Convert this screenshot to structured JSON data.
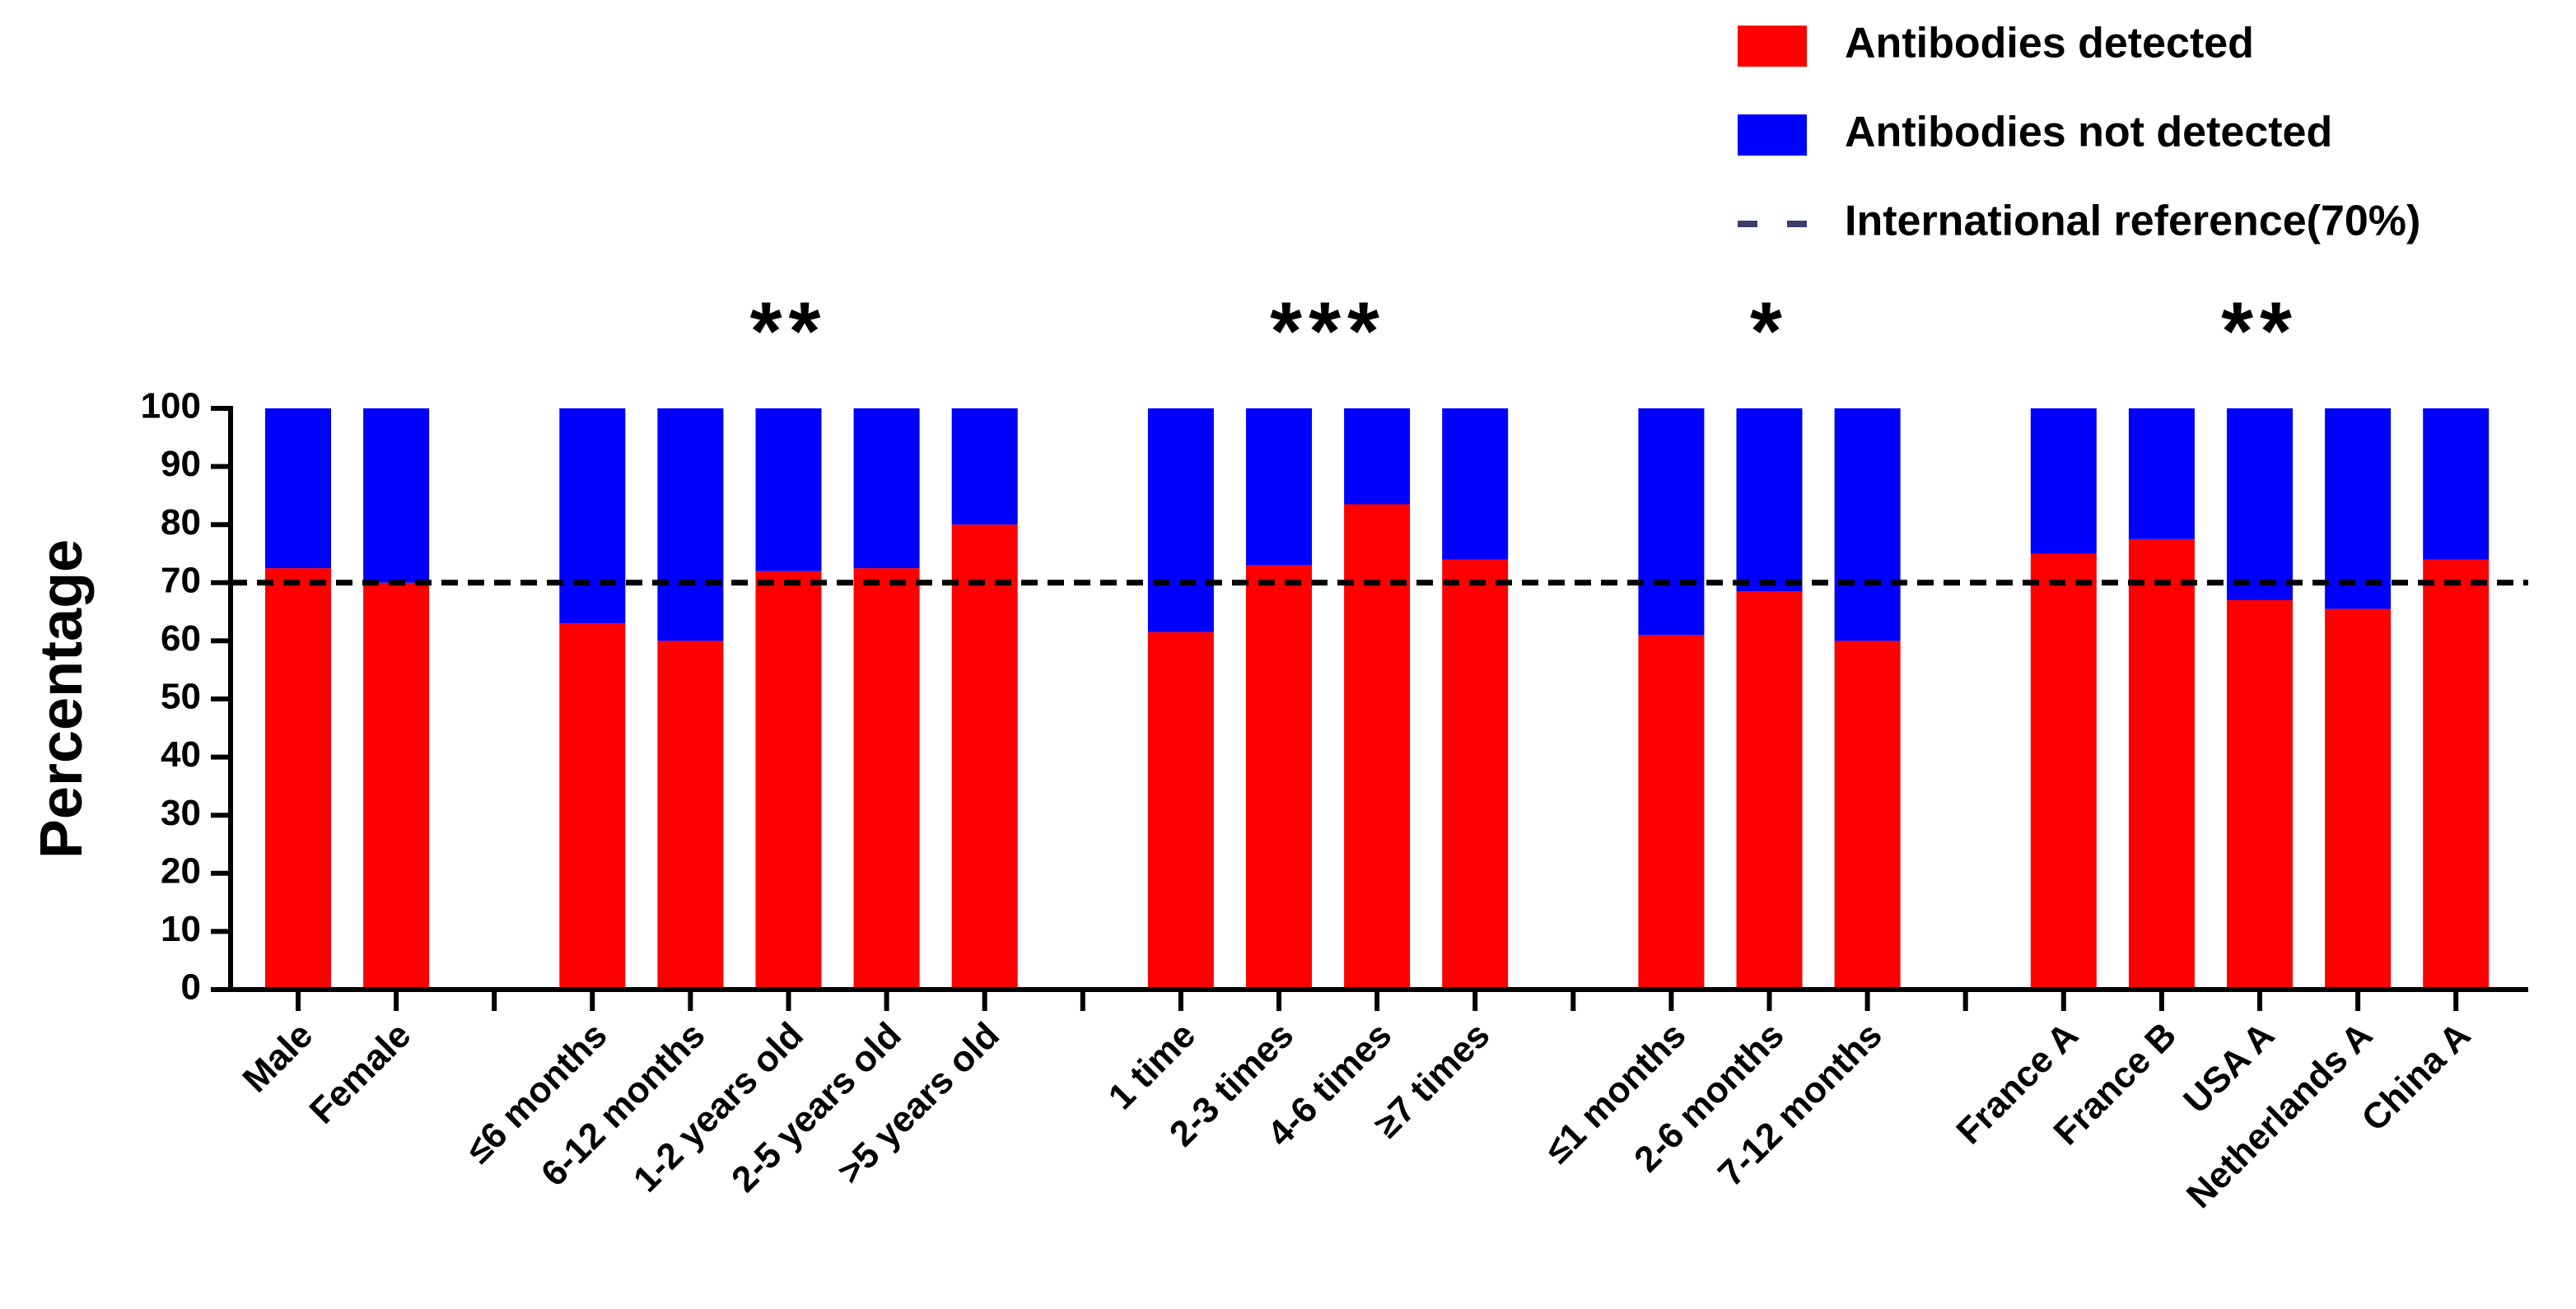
{
  "chart_data": {
    "type": "stacked_bar",
    "y_label": "Percentage",
    "categories": [
      "Male",
      "Female",
      null,
      "≤6 months",
      "6-12 months",
      "1-2 years old",
      "2-5 years old",
      ">5 years old",
      null,
      "1 time",
      "2-3 times",
      "4-6 times",
      "≥7 times",
      null,
      "≤1 months",
      "2-6 months",
      "7-12 months",
      null,
      "France A",
      "France B",
      "USA A",
      "Netherlands A",
      "China A"
    ],
    "series": [
      {
        "name": "Antibodies detected",
        "color": "#ff0000",
        "values": [
          72.5,
          70,
          null,
          63,
          60,
          72,
          72.5,
          80,
          null,
          61.5,
          73,
          83.5,
          74,
          null,
          61,
          68.5,
          60,
          null,
          75,
          77.5,
          67,
          65.5,
          74
        ]
      },
      {
        "name": "Antibodies not detected",
        "color": "#0000ff",
        "values": [
          27.5,
          30,
          null,
          37,
          40,
          28,
          27.5,
          20,
          null,
          38.5,
          27,
          16.5,
          26,
          null,
          39,
          31.5,
          40,
          null,
          25,
          22.5,
          33,
          34.5,
          26
        ]
      }
    ],
    "reference_line": {
      "name": "International reference(70%)",
      "value": 70,
      "color": "#000000",
      "legend_color": "#3c3c6e"
    },
    "annotations": [
      "**",
      "***",
      "*",
      "**"
    ],
    "ylim": [
      0,
      100
    ],
    "yticks": [
      0,
      10,
      20,
      30,
      40,
      50,
      60,
      70,
      80,
      90,
      100
    ]
  }
}
